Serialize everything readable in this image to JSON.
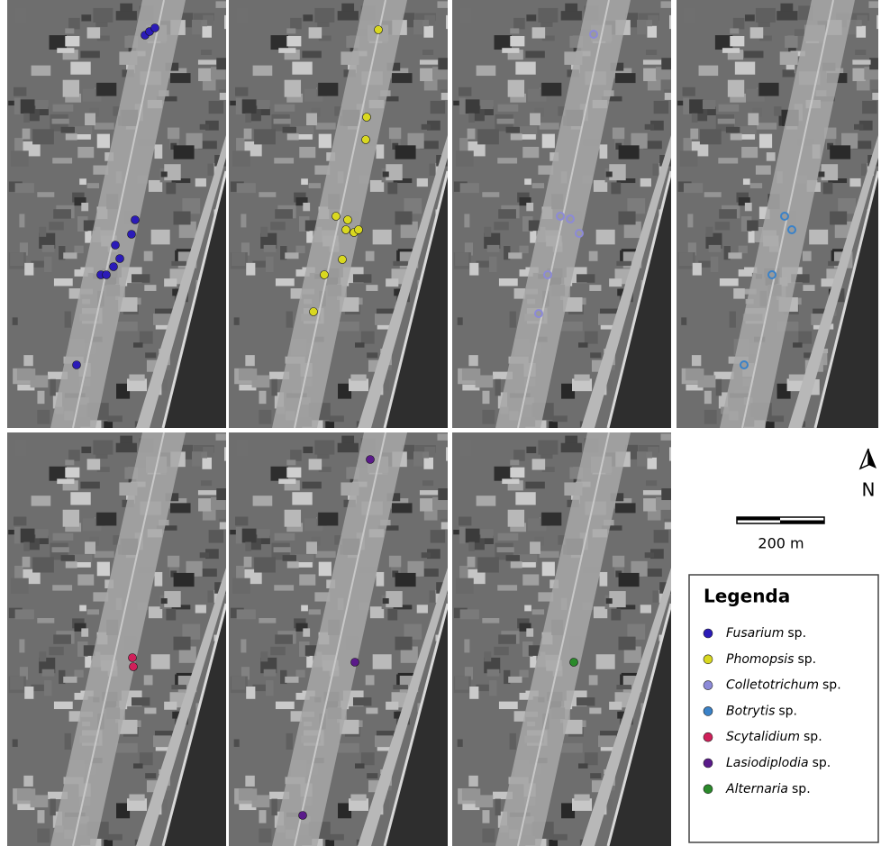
{
  "legend": {
    "title": "Legenda",
    "items": [
      {
        "genus": "Fusarium",
        "suffix": "sp.",
        "color": "#2b1bb8"
      },
      {
        "genus": "Phomopsis",
        "suffix": "sp.",
        "color": "#d9d820"
      },
      {
        "genus": "Colletotrichum",
        "suffix": "sp.",
        "color": "#8c8ad8"
      },
      {
        "genus": "Botrytis",
        "suffix": "sp.",
        "color": "#3a82c8"
      },
      {
        "genus": "Scytalidium",
        "suffix": "sp.",
        "color": "#d0205a"
      },
      {
        "genus": "Lasiodiplodia",
        "suffix": "sp.",
        "color": "#5a1a8a"
      },
      {
        "genus": "Alternaria",
        "suffix": "sp.",
        "color": "#2a8a2a"
      }
    ]
  },
  "north": "N",
  "scale_bar": "200 m"
}
